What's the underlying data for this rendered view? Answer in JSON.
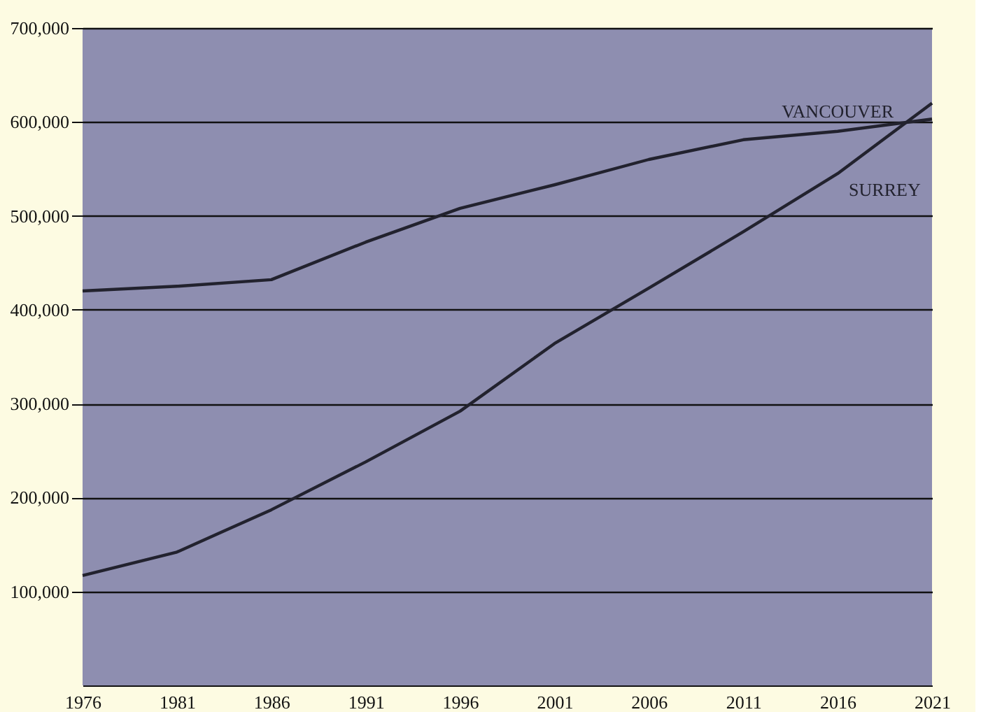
{
  "chart_data": {
    "type": "line",
    "x": [
      1976,
      1981,
      1986,
      1991,
      1996,
      2001,
      2006,
      2011,
      2016,
      2021
    ],
    "series": [
      {
        "name": "VANCOUVER",
        "color": "#22222e",
        "values": [
          420000,
          425000,
          432000,
          472000,
          508000,
          533000,
          560000,
          581000,
          590000,
          603000
        ]
      },
      {
        "name": "SURREY",
        "color": "#22222e",
        "values": [
          117000,
          142000,
          187000,
          238000,
          292000,
          364000,
          423000,
          483000,
          545000,
          620000
        ]
      }
    ],
    "xlim": [
      1976,
      2021
    ],
    "xticks": [
      1976,
      1981,
      1986,
      1991,
      1996,
      2001,
      2006,
      2011,
      2016,
      2021
    ],
    "ylim": [
      0,
      700000
    ],
    "yticks": [
      {
        "value": 100000,
        "label": "100,000"
      },
      {
        "value": 200000,
        "label": "200,000"
      },
      {
        "value": 300000,
        "label": "300,000"
      },
      {
        "value": 400000,
        "label": "400,000"
      },
      {
        "value": 500000,
        "label": "500,000"
      },
      {
        "value": 600000,
        "label": "600,000"
      },
      {
        "value": 700000,
        "label": "700,000"
      }
    ],
    "grid": "y",
    "legend": false,
    "marker": "none",
    "line_style": "solid"
  }
}
